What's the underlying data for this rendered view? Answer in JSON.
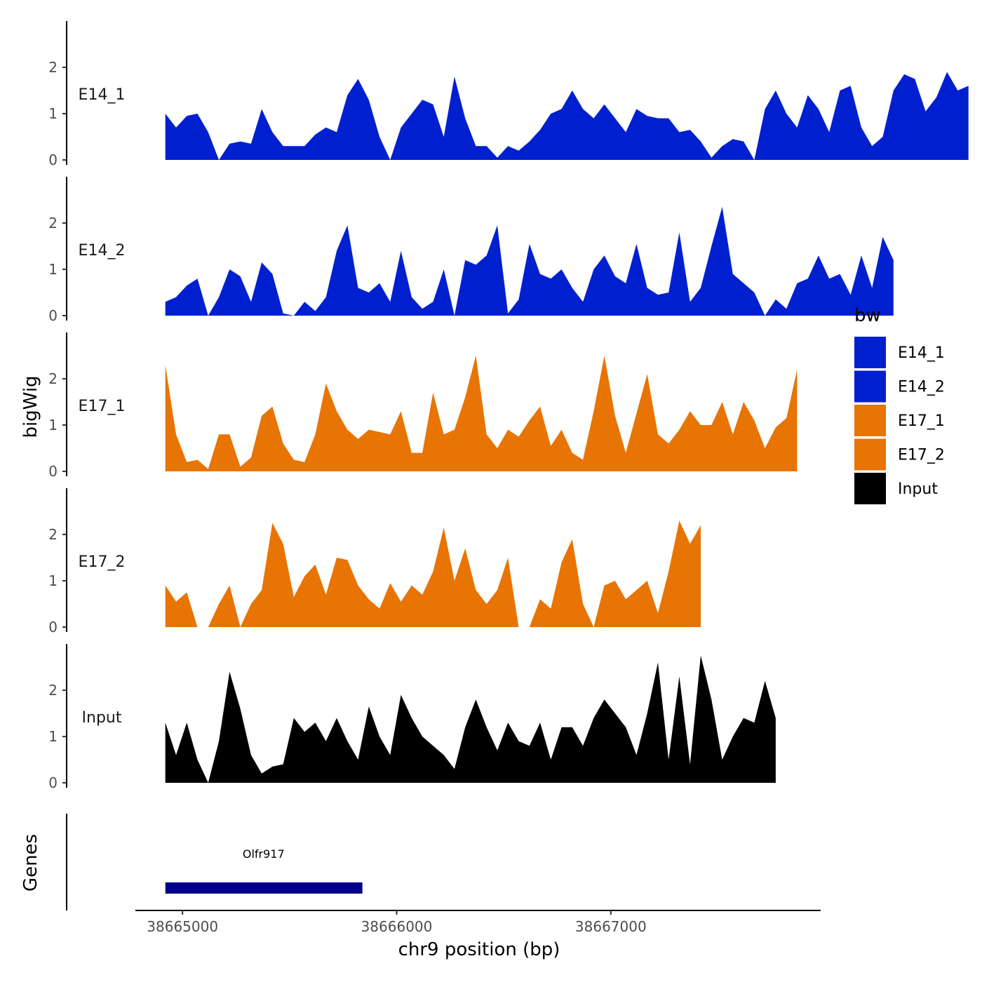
{
  "chart_data": {
    "type": "area",
    "xlabel": "chr9 position (bp)",
    "ylabel": "bigWig",
    "genes_label": "Genes",
    "xlim": [
      38664780,
      38667980
    ],
    "x_ticks": [
      38665000,
      38666000,
      38667000
    ],
    "x_tick_labels": [
      "38665000",
      "38666000",
      "38667000"
    ],
    "ylim": [
      0,
      2.9
    ],
    "y_ticks": [
      0,
      1,
      2
    ],
    "y_tick_labels": [
      "0",
      "1",
      "2"
    ],
    "legend": {
      "title": "bw",
      "entries": [
        {
          "label": "E14_1",
          "color": "#0020d0"
        },
        {
          "label": "E14_2",
          "color": "#0020d0"
        },
        {
          "label": "E17_1",
          "color": "#e87404"
        },
        {
          "label": "E17_2",
          "color": "#e87404"
        },
        {
          "label": "Input",
          "color": "#000000"
        }
      ]
    },
    "x_step": 50,
    "tracks": [
      {
        "name": "E14_1",
        "color": "#0020d0",
        "start": 38664920,
        "values": [
          1.0,
          0.7,
          0.95,
          1.0,
          0.6,
          0.0,
          0.35,
          0.4,
          0.35,
          1.1,
          0.6,
          0.3,
          0.3,
          0.3,
          0.55,
          0.7,
          0.6,
          1.4,
          1.75,
          1.3,
          0.5,
          0.0,
          0.7,
          1.0,
          1.3,
          1.2,
          0.5,
          1.8,
          0.9,
          0.3,
          0.3,
          0.05,
          0.3,
          0.2,
          0.4,
          0.65,
          1.0,
          1.1,
          1.5,
          1.1,
          0.9,
          1.2,
          0.9,
          0.6,
          1.1,
          0.95,
          0.9,
          0.9,
          0.6,
          0.65,
          0.4,
          0.05,
          0.3,
          0.45,
          0.4,
          0.0,
          1.1,
          1.5,
          1.0,
          0.7,
          1.4,
          1.1,
          0.6,
          1.5,
          1.6,
          0.7,
          0.3,
          0.5,
          1.5,
          1.85,
          1.75,
          1.05,
          1.35,
          1.9,
          1.5,
          1.6
        ]
      },
      {
        "name": "E14_2",
        "color": "#0020d0",
        "start": 38664920,
        "values": [
          0.3,
          0.4,
          0.65,
          0.8,
          0.0,
          0.4,
          1.0,
          0.85,
          0.3,
          1.15,
          0.9,
          0.05,
          0.0,
          0.3,
          0.1,
          0.4,
          1.4,
          1.95,
          0.6,
          0.5,
          0.7,
          0.3,
          1.4,
          0.4,
          0.15,
          0.3,
          1.0,
          0.0,
          1.2,
          1.1,
          1.3,
          1.95,
          0.05,
          0.35,
          1.55,
          0.9,
          0.8,
          1.0,
          0.6,
          0.3,
          1.0,
          1.3,
          0.85,
          0.7,
          1.55,
          0.6,
          0.45,
          0.5,
          1.8,
          0.3,
          0.6,
          1.5,
          2.35,
          0.9,
          0.7,
          0.5,
          0.0,
          0.35,
          0.15,
          0.7,
          0.8,
          1.3,
          0.8,
          0.9,
          0.45,
          1.3,
          0.6,
          1.7,
          1.2
        ]
      },
      {
        "name": "E17_1",
        "color": "#e87404",
        "start": 38664920,
        "values": [
          2.3,
          0.8,
          0.2,
          0.25,
          0.05,
          0.8,
          0.8,
          0.1,
          0.3,
          1.2,
          1.4,
          0.6,
          0.25,
          0.2,
          0.8,
          1.9,
          1.3,
          0.9,
          0.7,
          0.9,
          0.85,
          0.8,
          1.3,
          0.4,
          0.4,
          1.7,
          0.8,
          0.9,
          1.6,
          2.5,
          0.8,
          0.5,
          0.9,
          0.75,
          1.1,
          1.4,
          0.55,
          0.9,
          0.4,
          0.25,
          1.3,
          2.5,
          1.2,
          0.4,
          1.25,
          2.1,
          0.8,
          0.6,
          0.9,
          1.3,
          1.0,
          1.0,
          1.5,
          0.8,
          1.5,
          1.1,
          0.5,
          0.95,
          1.15,
          2.2
        ]
      },
      {
        "name": "E17_2",
        "color": "#e87404",
        "start": 38664920,
        "values": [
          0.9,
          0.55,
          0.75,
          0.0,
          0.0,
          0.5,
          0.9,
          0.0,
          0.5,
          0.8,
          2.25,
          1.8,
          0.65,
          1.1,
          1.35,
          0.7,
          1.5,
          1.45,
          0.9,
          0.6,
          0.4,
          0.95,
          0.55,
          0.9,
          0.7,
          1.2,
          2.15,
          1.0,
          1.7,
          0.8,
          0.5,
          0.8,
          1.5,
          0.0,
          0.0,
          0.6,
          0.4,
          1.4,
          1.9,
          0.5,
          0.0,
          0.9,
          1.0,
          0.6,
          0.8,
          1.0,
          0.3,
          1.2,
          2.3,
          1.8,
          2.2
        ]
      },
      {
        "name": "Input",
        "color": "#000000",
        "start": 38664920,
        "values": [
          1.3,
          0.6,
          1.3,
          0.5,
          0.0,
          0.9,
          2.4,
          1.6,
          0.6,
          0.2,
          0.35,
          0.4,
          1.4,
          1.1,
          1.3,
          0.9,
          1.4,
          0.9,
          0.5,
          1.65,
          1.0,
          0.6,
          1.9,
          1.4,
          1.0,
          0.8,
          0.6,
          0.3,
          1.2,
          1.8,
          1.2,
          0.7,
          1.3,
          0.9,
          0.8,
          1.3,
          0.5,
          1.2,
          1.2,
          0.8,
          1.4,
          1.8,
          1.5,
          1.2,
          0.6,
          1.5,
          2.6,
          0.5,
          2.3,
          0.4,
          2.75,
          1.8,
          0.5,
          1.0,
          1.4,
          1.3,
          2.2,
          1.4
        ]
      }
    ],
    "genes": [
      {
        "name": "Olfr917",
        "start": 38664920,
        "end": 38665840,
        "color": "#00008b"
      }
    ]
  }
}
